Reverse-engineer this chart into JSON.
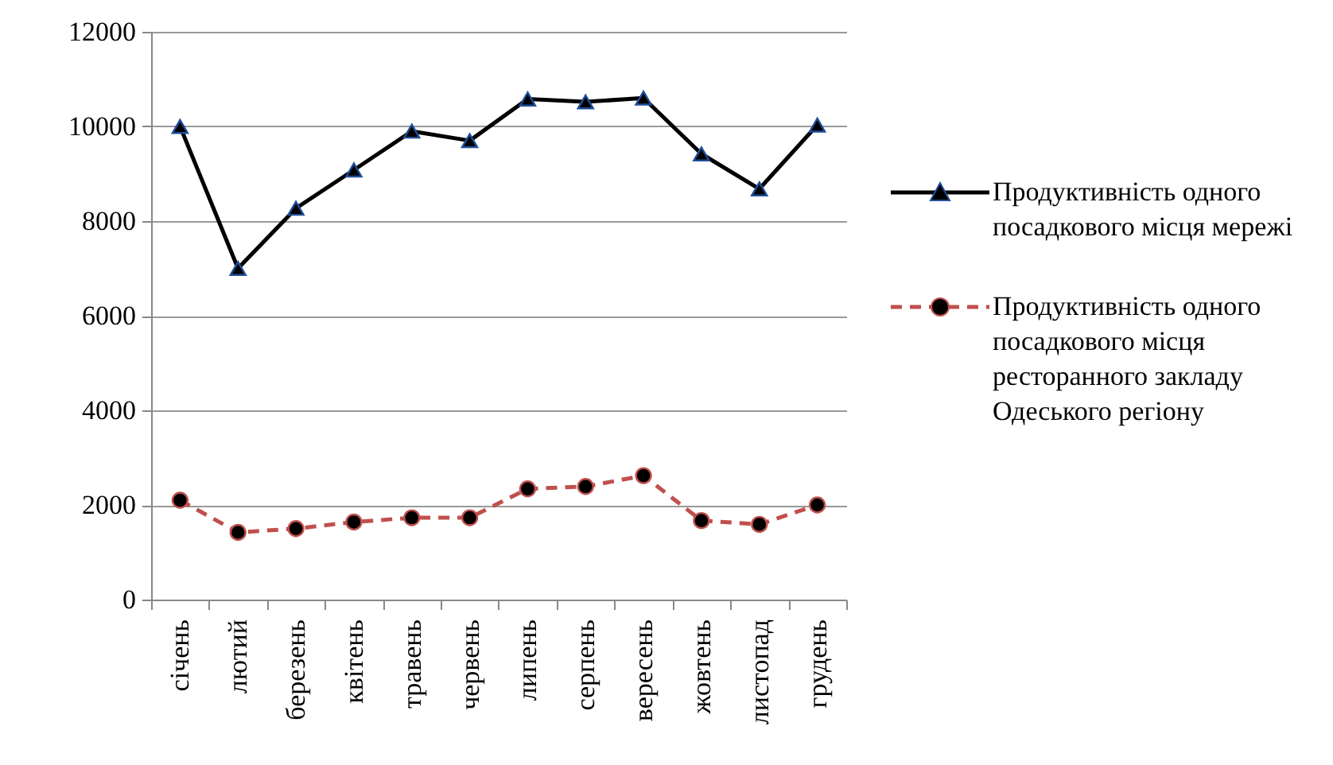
{
  "chart_data": {
    "type": "line",
    "categories": [
      "січень",
      "лютий",
      "березень",
      "квітень",
      "травень",
      "червень",
      "липень",
      "серпень",
      "вересень",
      "жовтень",
      "листопад",
      "грудень"
    ],
    "series": [
      {
        "name": "Продуктивність одного посадкового місця мережі",
        "color": "#000000",
        "marker": "triangle",
        "line_style": "solid",
        "values": [
          10000,
          7000,
          8270,
          9080,
          9900,
          9700,
          10580,
          10520,
          10600,
          9420,
          8680,
          10030
        ]
      },
      {
        "name": "Продуктивність одного посадкового місця ресторанного закладу Одеського регіону",
        "color": "#c0504d",
        "marker": "circle",
        "line_style": "dashed",
        "values": [
          2100,
          1420,
          1500,
          1640,
          1730,
          1730,
          2340,
          2390,
          2620,
          1670,
          1590,
          2000
        ]
      }
    ],
    "ylim": [
      0,
      12000
    ],
    "yticks": [
      0,
      2000,
      4000,
      6000,
      8000,
      10000,
      12000
    ],
    "grid": "y",
    "legend": "right"
  }
}
